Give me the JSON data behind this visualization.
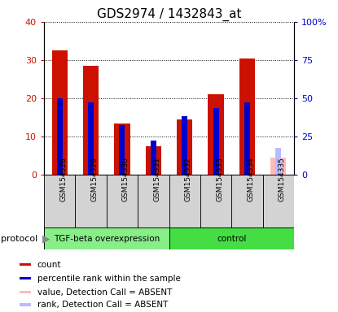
{
  "title": "GDS2974 / 1432843_at",
  "samples": [
    "GSM154328",
    "GSM154329",
    "GSM154330",
    "GSM154331",
    "GSM154332",
    "GSM154333",
    "GSM154334",
    "GSM154335"
  ],
  "count_values": [
    32.5,
    28.5,
    13.5,
    7.5,
    14.5,
    21.0,
    30.5,
    null
  ],
  "rank_values": [
    50.0,
    47.5,
    32.5,
    22.5,
    38.5,
    43.5,
    47.5,
    null
  ],
  "absent_value": 4.5,
  "absent_rank": 17.5,
  "count_color": "#CC1100",
  "rank_color": "#0000CC",
  "absent_count_color": "#FFBBBB",
  "absent_rank_color": "#BBBBFF",
  "ylim_left": [
    0,
    40
  ],
  "ylim_right": [
    0,
    100
  ],
  "yticks_left": [
    0,
    10,
    20,
    30,
    40
  ],
  "ytick_labels_left": [
    "0",
    "10",
    "20",
    "30",
    "40"
  ],
  "yticks_right": [
    0,
    25,
    50,
    75,
    100
  ],
  "ytick_labels_right": [
    "0",
    "25",
    "50",
    "75",
    "100%"
  ],
  "protocol_groups": [
    {
      "label": "TGF-beta overexpression",
      "indices": [
        0,
        1,
        2,
        3
      ],
      "color": "#88EE88"
    },
    {
      "label": "control",
      "indices": [
        4,
        5,
        6,
        7
      ],
      "color": "#44DD44"
    }
  ],
  "legend_items": [
    {
      "label": "count",
      "color": "#CC1100"
    },
    {
      "label": "percentile rank within the sample",
      "color": "#0000CC"
    },
    {
      "label": "value, Detection Call = ABSENT",
      "color": "#FFBBBB"
    },
    {
      "label": "rank, Detection Call = ABSENT",
      "color": "#BBBBFF"
    }
  ],
  "bar_width": 0.5,
  "rank_bar_width": 0.18,
  "plot_bg": "#FFFFFF",
  "sample_box_color": "#D3D3D3",
  "tick_color_left": "#CC1100",
  "tick_color_right": "#0000CC",
  "protocol_label": "protocol"
}
